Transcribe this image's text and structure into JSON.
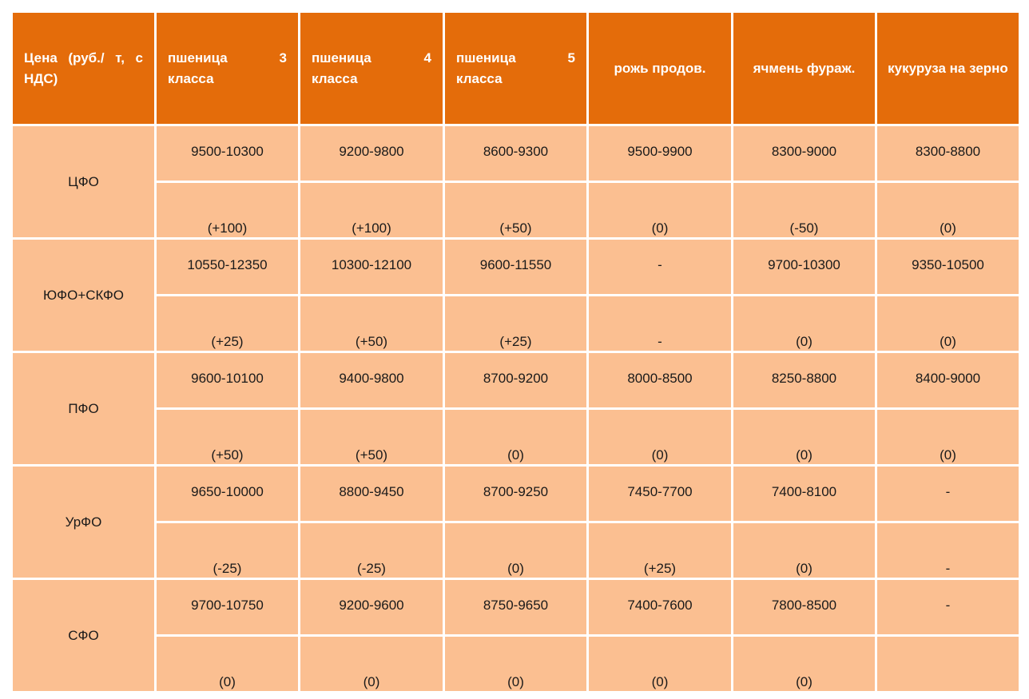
{
  "table": {
    "headers": [
      "Цена (руб./ т, с НДС)",
      "пшеница 3 класса",
      "пшеница 4 класса",
      "пшеница 5 класса",
      "рожь продов.",
      "ячмень фураж.",
      "кукуруза на зерно"
    ],
    "header_fill_color": "#e46c0a",
    "body_fill_color": "#fbbf91",
    "regions": [
      {
        "name": "ЦФО",
        "prices": [
          "9500-10300",
          "9200-9800",
          "8600-9300",
          "9500-9900",
          "8300-9000",
          "8300-8800"
        ],
        "changes": [
          "(+100)",
          "(+100)",
          "(+50)",
          "(0)",
          "(-50)",
          "(0)"
        ]
      },
      {
        "name": "ЮФО+СКФО",
        "prices": [
          "10550-12350",
          "10300-12100",
          "9600-11550",
          "-",
          "9700-10300",
          "9350-10500"
        ],
        "changes": [
          "(+25)",
          "(+50)",
          "(+25)",
          "-",
          "(0)",
          "(0)"
        ]
      },
      {
        "name": "ПФО",
        "prices": [
          "9600-10100",
          "9400-9800",
          "8700-9200",
          "8000-8500",
          "8250-8800",
          "8400-9000"
        ],
        "changes": [
          "(+50)",
          "(+50)",
          "(0)",
          "(0)",
          "(0)",
          "(0)"
        ]
      },
      {
        "name": "УрФО",
        "prices": [
          "9650-10000",
          "8800-9450",
          "8700-9250",
          "7450-7700",
          "7400-8100",
          "-"
        ],
        "changes": [
          "(-25)",
          "(-25)",
          "(0)",
          "(+25)",
          "(0)",
          "-"
        ]
      },
      {
        "name": "СФО",
        "prices": [
          "9700-10750",
          "9200-9600",
          "8750-9650",
          "7400-7600",
          "7800-8500",
          "-"
        ],
        "changes": [
          "(0)",
          "(0)",
          "(0)",
          "(0)",
          "(0)",
          ""
        ]
      }
    ]
  }
}
